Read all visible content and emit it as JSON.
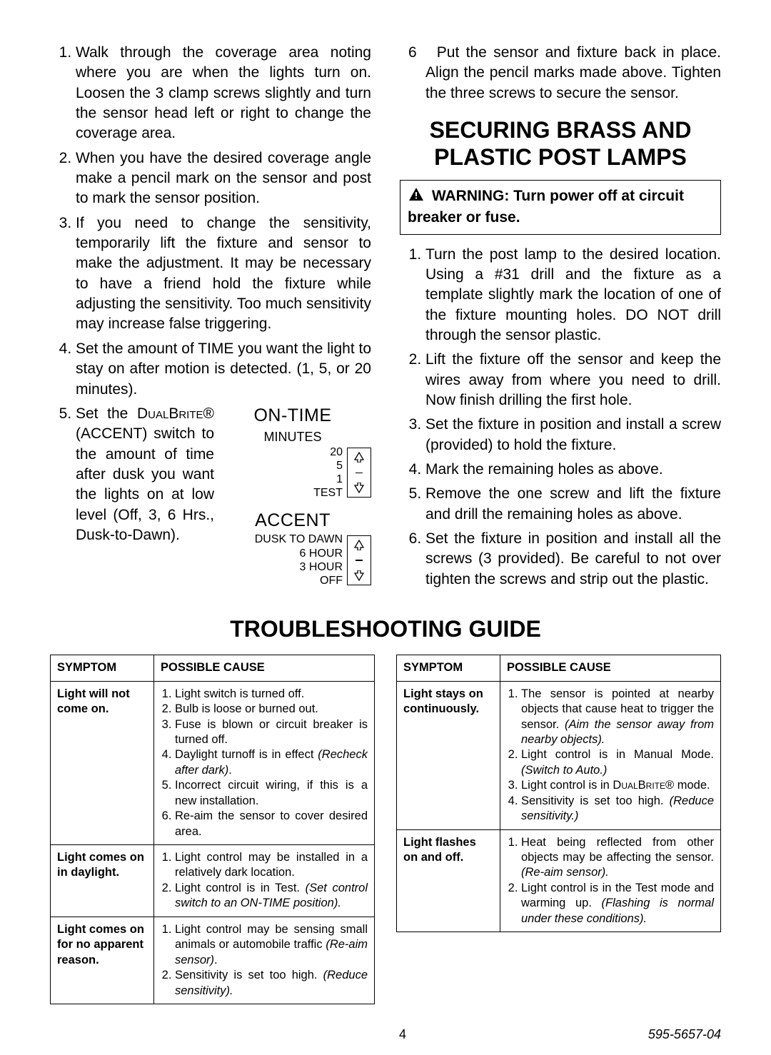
{
  "left": {
    "steps": [
      "Walk through the coverage area noting where you are when the lights turn on. Loosen the 3 clamp screws slightly and turn the sensor head left or right to change the coverage area.",
      "When you have the desired coverage angle make a pencil mark on the sensor and post to mark the sensor position.",
      "If you need to change the sensitivity, temporarily lift the fixture and sensor to make the adjustment. It may be necessary to have a friend hold the fixture while adjusting the sensitivity. Too much sensitivity may increase false triggering."
    ],
    "step4_pre": "Set the amount of TIME you want the light to stay on after motion is detected. (1, 5, or 20 minutes).",
    "step5_pre": "Set the ",
    "step5_brand": "DualBrite",
    "step5_post": "® (ACCENT) switch to the amount of time after dusk you want the lights on at low level (Off, 3, 6 Hrs., Dusk-to-Dawn)."
  },
  "diagram": {
    "ontime_title": "ON-TIME",
    "ontime_sub": "MINUTES",
    "ontime_labels": [
      "20",
      "5",
      "1",
      "TEST"
    ],
    "accent_title": "ACCENT",
    "accent_labels": [
      "DUSK TO DAWN",
      "6 HOUR",
      "3 HOUR",
      "OFF"
    ]
  },
  "right_top": {
    "step6": "Put the sensor and fixture back in place. Align the pencil marks made above. Tighten the three screws to secure the sensor."
  },
  "securing": {
    "heading": "SECURING BRASS AND PLASTIC POST LAMPS",
    "warning": "WARNING: Turn power off at circuit breaker or fuse.",
    "steps": [
      "Turn the post lamp to the desired location. Using a #31 drill and the fixture as a template slightly mark the location of one of the fixture mounting holes. DO NOT drill through the sensor plastic.",
      "Lift the fixture off the sensor and keep the wires away from where you need to drill. Now finish drilling the first hole.",
      "Set the fixture in position and install a screw (provided) to hold the fixture.",
      "Mark the remaining holes as above.",
      "Remove the one screw and lift the fixture and drill the remaining holes as above.",
      "Set the fixture in position and install all the screws (3 provided). Be careful to not over tighten the screws and strip out the plastic."
    ]
  },
  "ts": {
    "heading": "TROUBLESHOOTING GUIDE",
    "head_symptom": "SYMPTOM",
    "head_cause": "POSSIBLE CAUSE",
    "left_rows": [
      {
        "sym": "Light will not come on.",
        "causes": [
          "Light switch is turned off.",
          "Bulb is loose or burned out.",
          "Fuse is blown or circuit breaker is turned off.",
          "Daylight turnoff is in effect <i>(Recheck after dark)</i>.",
          "Incorrect circuit wiring, if this is a new installation.",
          "Re-aim the sensor to cover desired area."
        ]
      },
      {
        "sym": "Light comes on in daylight.",
        "causes": [
          "Light control may be installed in a relatively dark location.",
          "Light control is in Test. <i>(Set control switch to an ON-TIME position).</i>"
        ]
      },
      {
        "sym": "Light comes on for no apparent reason.",
        "causes": [
          "Light control may be sensing small animals or automobile traffic <i>(Re-aim sensor)</i>.",
          "Sensitivity is set too high. <i>(Reduce sensitivity).</i>"
        ]
      }
    ],
    "right_rows": [
      {
        "sym": "Light stays on continuously.",
        "causes": [
          "The sensor is pointed at nearby objects that cause heat to trigger the sensor. <i>(Aim the sensor away from nearby objects).</i>",
          "Light control is in Manual Mode. <i>(Switch to Auto.)</i>",
          "Light control is in <span class=\"smallcaps\">DualBrite</span>® mode.",
          "Sensitivity is set too high. <i>(Reduce sensitivity.)</i>"
        ]
      },
      {
        "sym": "Light flashes on and off.",
        "causes": [
          "Heat being reflected from other objects may be affecting the sensor. <i>(Re-aim sensor).</i>",
          "Light control is in the Test mode and warming up. <i>(Flashing is normal under these conditions).</i>"
        ]
      }
    ]
  },
  "footer": {
    "page": "4",
    "code": "595-5657-04"
  }
}
